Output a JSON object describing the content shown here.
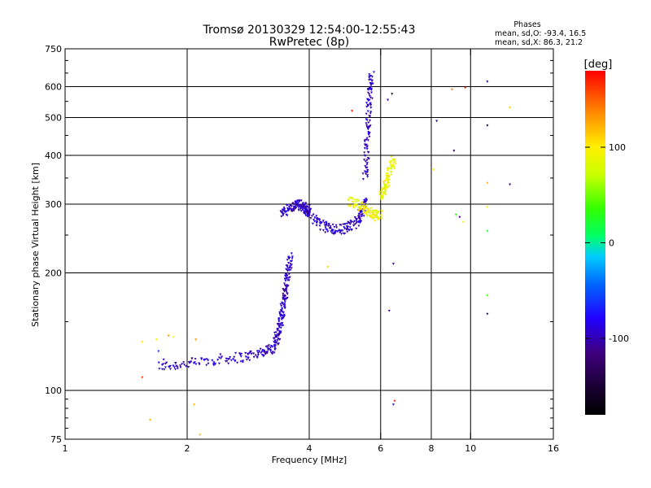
{
  "chart_data": {
    "type": "scatter",
    "title": "Tromsø 20130329 12:54:00-12:55:43",
    "subtitle": "RwPretec (8p)",
    "xlabel": "Frequency [MHz]",
    "ylabel": "Stationary phase Virtual Height [km]",
    "x_scale": "log",
    "y_scale": "log",
    "xlim": [
      1,
      16
    ],
    "ylim": [
      75,
      750
    ],
    "grid": true,
    "x_ticks": [
      1,
      2,
      4,
      6,
      8,
      10,
      16
    ],
    "y_ticks": [
      75,
      100,
      200,
      300,
      400,
      500,
      600,
      750
    ],
    "x_grid": [
      2,
      4,
      6,
      8,
      10
    ],
    "y_grid": [
      100,
      200,
      300,
      400,
      500,
      600
    ],
    "phase_stats": {
      "heading": "Phases",
      "line_o": "mean, sd,O: -93.4, 16.5",
      "line_x": "mean, sd,X:  86.3, 21.2"
    },
    "colorbar": {
      "unit": "[deg]",
      "range": [
        -180,
        180
      ],
      "ticks": [
        100,
        0,
        -100
      ],
      "tick_labels": [
        "100",
        "0",
        "-100"
      ]
    },
    "series": [
      {
        "mode": "O",
        "phase_deg": -95,
        "trace_segments": [
          {
            "x": [
              1.7,
              2.0,
              2.4,
              2.8,
              3.1,
              3.3
            ],
            "y": [
              115,
              117,
              120,
              122,
              126,
              129
            ]
          },
          {
            "x": [
              3.3,
              3.35,
              3.4,
              3.45,
              3.5,
              3.55,
              3.6
            ],
            "y": [
              130,
              140,
              150,
              165,
              180,
              200,
              220
            ]
          },
          {
            "x": [
              3.4,
              3.6,
              3.75,
              3.85,
              3.95,
              4.0
            ],
            "y": [
              285,
              292,
              300,
              296,
              291,
              285
            ]
          },
          {
            "x": [
              4.0,
              4.3,
              4.6,
              4.9,
              5.2,
              5.4,
              5.5
            ],
            "y": [
              280,
              265,
              258,
              260,
              268,
              285,
              310
            ]
          },
          {
            "x": [
              5.5,
              5.55,
              5.6,
              5.65,
              5.7
            ],
            "y": [
              350,
              420,
              500,
              580,
              640
            ]
          }
        ]
      },
      {
        "mode": "X",
        "phase_deg": 90,
        "trace_segments": [
          {
            "x": [
              5.0,
              5.3,
              5.6,
              5.8,
              6.0
            ],
            "y": [
              305,
              300,
              285,
              280,
              282
            ]
          },
          {
            "x": [
              6.0,
              6.15,
              6.3,
              6.45
            ],
            "y": [
              310,
              330,
              360,
              390
            ]
          }
        ]
      }
    ],
    "scattered_points": [
      {
        "x": 1.55,
        "y": 133,
        "phase": 95
      },
      {
        "x": 1.55,
        "y": 108,
        "phase": 160
      },
      {
        "x": 1.62,
        "y": 84,
        "phase": 120
      },
      {
        "x": 1.68,
        "y": 135,
        "phase": 95
      },
      {
        "x": 1.7,
        "y": 126,
        "phase": -60
      },
      {
        "x": 1.75,
        "y": 120,
        "phase": -100
      },
      {
        "x": 1.8,
        "y": 138,
        "phase": 130
      },
      {
        "x": 1.85,
        "y": 137,
        "phase": 95
      },
      {
        "x": 2.08,
        "y": 92,
        "phase": 120
      },
      {
        "x": 2.1,
        "y": 135,
        "phase": 130
      },
      {
        "x": 2.15,
        "y": 77,
        "phase": 120
      },
      {
        "x": 4.45,
        "y": 207,
        "phase": 110
      },
      {
        "x": 5.1,
        "y": 520,
        "phase": 170
      },
      {
        "x": 6.25,
        "y": 555,
        "phase": -100
      },
      {
        "x": 6.4,
        "y": 575,
        "phase": -150
      },
      {
        "x": 6.45,
        "y": 211,
        "phase": -110
      },
      {
        "x": 6.45,
        "y": 92,
        "phase": -100
      },
      {
        "x": 6.5,
        "y": 94,
        "phase": 170
      },
      {
        "x": 6.3,
        "y": 160,
        "phase": -110
      },
      {
        "x": 8.1,
        "y": 368,
        "phase": 100
      },
      {
        "x": 8.25,
        "y": 490,
        "phase": -110
      },
      {
        "x": 9.0,
        "y": 590,
        "phase": 140
      },
      {
        "x": 9.1,
        "y": 411,
        "phase": -130
      },
      {
        "x": 9.2,
        "y": 282,
        "phase": 30
      },
      {
        "x": 9.4,
        "y": 278,
        "phase": -110
      },
      {
        "x": 9.6,
        "y": 270,
        "phase": 100
      },
      {
        "x": 9.7,
        "y": 596,
        "phase": 170
      },
      {
        "x": 11.0,
        "y": 618,
        "phase": -110
      },
      {
        "x": 11.0,
        "y": 477,
        "phase": -140
      },
      {
        "x": 11.0,
        "y": 340,
        "phase": 120
      },
      {
        "x": 11.0,
        "y": 295,
        "phase": 100
      },
      {
        "x": 11.0,
        "y": 256,
        "phase": 20
      },
      {
        "x": 11.0,
        "y": 175,
        "phase": 40
      },
      {
        "x": 11.0,
        "y": 157,
        "phase": -130
      },
      {
        "x": 12.5,
        "y": 530,
        "phase": 110
      },
      {
        "x": 12.5,
        "y": 337,
        "phase": -120
      }
    ]
  }
}
